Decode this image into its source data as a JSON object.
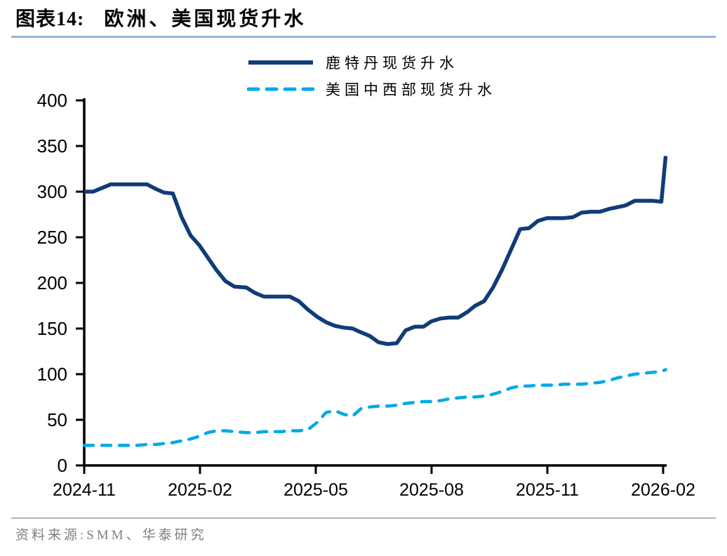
{
  "header": {
    "label": "图表14:",
    "title": "欧洲、美国现货升水"
  },
  "footer": {
    "source": "资料来源:SMM、华泰研究"
  },
  "colors": {
    "title_rule": "#95b3d7",
    "footer_divider": "#b3b3b3",
    "source_text": "#808080",
    "axis": "#000000",
    "rotterdam_line": "#103c78",
    "us_midwest_line": "#00a9e9"
  },
  "chart_data": {
    "type": "line",
    "title": "欧洲、美国现货升水",
    "xlabel": "",
    "ylabel": "",
    "ylim": [
      0,
      400
    ],
    "grid": false,
    "legend_position": "top-center",
    "y_ticks": [
      0,
      50,
      100,
      150,
      200,
      250,
      300,
      350,
      400
    ],
    "x_ticks": [
      "2024-11",
      "2025-02",
      "2025-05",
      "2025-08",
      "2025-11",
      "2026-02"
    ],
    "series": [
      {
        "id": "rotterdam",
        "name": "鹿特丹现货升水",
        "style": "solid",
        "color": "#103c78",
        "points": [
          [
            "2024-11-01",
            300
          ],
          [
            "2024-11-08",
            300
          ],
          [
            "2024-11-15",
            304
          ],
          [
            "2024-11-22",
            308
          ],
          [
            "2024-11-29",
            308
          ],
          [
            "2024-12-06",
            308
          ],
          [
            "2024-12-13",
            308
          ],
          [
            "2024-12-20",
            308
          ],
          [
            "2024-12-27",
            303
          ],
          [
            "2025-01-03",
            299
          ],
          [
            "2025-01-10",
            298
          ],
          [
            "2025-01-17",
            272
          ],
          [
            "2025-01-24",
            252
          ],
          [
            "2025-01-31",
            241
          ],
          [
            "2025-02-07",
            228
          ],
          [
            "2025-02-14",
            214
          ],
          [
            "2025-02-21",
            202
          ],
          [
            "2025-02-28",
            196
          ],
          [
            "2025-03-07",
            195
          ],
          [
            "2025-03-14",
            189
          ],
          [
            "2025-03-21",
            185
          ],
          [
            "2025-03-28",
            185
          ],
          [
            "2025-04-04",
            185
          ],
          [
            "2025-04-11",
            185
          ],
          [
            "2025-04-18",
            180
          ],
          [
            "2025-04-25",
            171
          ],
          [
            "2025-05-02",
            163
          ],
          [
            "2025-05-09",
            157
          ],
          [
            "2025-05-16",
            153
          ],
          [
            "2025-05-23",
            151
          ],
          [
            "2025-05-30",
            150
          ],
          [
            "2025-06-06",
            146
          ],
          [
            "2025-06-13",
            142
          ],
          [
            "2025-06-20",
            135
          ],
          [
            "2025-06-27",
            133
          ],
          [
            "2025-07-04",
            134
          ],
          [
            "2025-07-11",
            148
          ],
          [
            "2025-07-18",
            152
          ],
          [
            "2025-07-25",
            152
          ],
          [
            "2025-08-01",
            158
          ],
          [
            "2025-08-08",
            161
          ],
          [
            "2025-08-15",
            162
          ],
          [
            "2025-08-22",
            162
          ],
          [
            "2025-08-29",
            168
          ],
          [
            "2025-09-05",
            175
          ],
          [
            "2025-09-12",
            180
          ],
          [
            "2025-09-19",
            195
          ],
          [
            "2025-09-26",
            214
          ],
          [
            "2025-10-03",
            237
          ],
          [
            "2025-10-10",
            259
          ],
          [
            "2025-10-17",
            260
          ],
          [
            "2025-10-24",
            268
          ],
          [
            "2025-10-31",
            271
          ],
          [
            "2025-11-07",
            271
          ],
          [
            "2025-11-14",
            271
          ],
          [
            "2025-11-21",
            272
          ],
          [
            "2025-11-28",
            277
          ],
          [
            "2025-12-05",
            278
          ],
          [
            "2025-12-12",
            278
          ],
          [
            "2025-12-19",
            281
          ],
          [
            "2025-12-26",
            283
          ],
          [
            "2026-01-02",
            285
          ],
          [
            "2026-01-09",
            290
          ],
          [
            "2026-01-16",
            290
          ],
          [
            "2026-01-23",
            290
          ],
          [
            "2026-01-30",
            289
          ],
          [
            "2026-02-03",
            339
          ]
        ]
      },
      {
        "id": "us-midwest",
        "name": "美国中西部现货升水",
        "style": "dashed",
        "color": "#00a9e9",
        "points": [
          [
            "2024-11-01",
            22
          ],
          [
            "2024-11-08",
            22
          ],
          [
            "2024-11-15",
            22
          ],
          [
            "2024-11-22",
            22
          ],
          [
            "2024-11-29",
            22
          ],
          [
            "2024-12-06",
            22
          ],
          [
            "2024-12-13",
            22
          ],
          [
            "2024-12-20",
            23
          ],
          [
            "2024-12-27",
            23
          ],
          [
            "2025-01-03",
            24
          ],
          [
            "2025-01-10",
            25
          ],
          [
            "2025-01-17",
            27
          ],
          [
            "2025-01-24",
            29
          ],
          [
            "2025-01-31",
            32
          ],
          [
            "2025-02-07",
            36
          ],
          [
            "2025-02-14",
            38
          ],
          [
            "2025-02-21",
            38
          ],
          [
            "2025-02-28",
            37
          ],
          [
            "2025-03-07",
            36
          ],
          [
            "2025-03-14",
            36
          ],
          [
            "2025-03-21",
            37
          ],
          [
            "2025-03-28",
            37
          ],
          [
            "2025-04-04",
            37
          ],
          [
            "2025-04-11",
            38
          ],
          [
            "2025-04-18",
            38
          ],
          [
            "2025-04-25",
            39
          ],
          [
            "2025-05-02",
            47
          ],
          [
            "2025-05-09",
            58
          ],
          [
            "2025-05-16",
            60
          ],
          [
            "2025-05-23",
            56
          ],
          [
            "2025-05-30",
            54
          ],
          [
            "2025-06-06",
            62
          ],
          [
            "2025-06-13",
            64
          ],
          [
            "2025-06-20",
            65
          ],
          [
            "2025-06-27",
            65
          ],
          [
            "2025-07-04",
            66
          ],
          [
            "2025-07-11",
            68
          ],
          [
            "2025-07-18",
            69
          ],
          [
            "2025-07-25",
            70
          ],
          [
            "2025-08-01",
            70
          ],
          [
            "2025-08-08",
            71
          ],
          [
            "2025-08-15",
            73
          ],
          [
            "2025-08-22",
            74
          ],
          [
            "2025-08-29",
            75
          ],
          [
            "2025-09-05",
            75
          ],
          [
            "2025-09-12",
            76
          ],
          [
            "2025-09-19",
            78
          ],
          [
            "2025-09-26",
            81
          ],
          [
            "2025-10-03",
            85
          ],
          [
            "2025-10-10",
            87
          ],
          [
            "2025-10-17",
            87
          ],
          [
            "2025-10-24",
            88
          ],
          [
            "2025-10-31",
            88
          ],
          [
            "2025-11-07",
            88
          ],
          [
            "2025-11-14",
            89
          ],
          [
            "2025-11-21",
            89
          ],
          [
            "2025-11-28",
            89
          ],
          [
            "2025-12-05",
            90
          ],
          [
            "2025-12-12",
            91
          ],
          [
            "2025-12-19",
            93
          ],
          [
            "2025-12-26",
            96
          ],
          [
            "2026-01-02",
            98
          ],
          [
            "2026-01-09",
            100
          ],
          [
            "2026-01-16",
            101
          ],
          [
            "2026-01-23",
            102
          ],
          [
            "2026-01-30",
            103
          ],
          [
            "2026-02-03",
            105
          ]
        ]
      }
    ]
  }
}
